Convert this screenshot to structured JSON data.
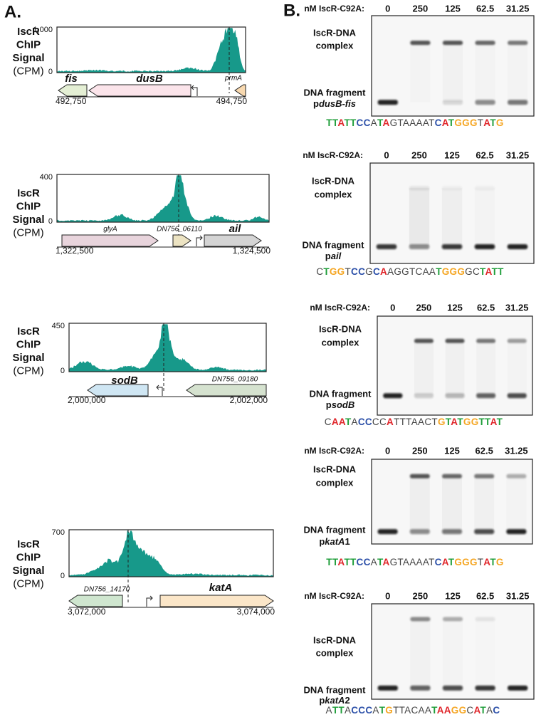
{
  "panel_a": {
    "label": "A.",
    "tracks": [
      {
        "ylabel": [
          "IscR",
          "ChIP",
          "Signal",
          "(CPM)"
        ],
        "ymax": "1,000",
        "ymin": "0",
        "genes": [
          "fis",
          "dusB",
          "prmA"
        ],
        "start": "492,750",
        "end": "494,750"
      },
      {
        "ylabel": [
          "IscR",
          "ChIP",
          "Signal",
          "(CPM)"
        ],
        "ymax": "400",
        "ymin": "0",
        "genes": [
          "glyA",
          "DN756_06110",
          "ail"
        ],
        "start": "1,322,500",
        "end": "1,324,500"
      },
      {
        "ylabel": [
          "IscR",
          "ChIP",
          "Signal",
          "(CPM)"
        ],
        "ymax": "450",
        "ymin": "0",
        "genes": [
          "sodB",
          "DN756_09180"
        ],
        "start": "2,000,000",
        "end": "2,002,000"
      },
      {
        "ylabel": [
          "IscR",
          "ChIP",
          "Signal",
          "(CPM)"
        ],
        "ymax": "700",
        "ymin": "0",
        "genes": [
          "DN756_14170",
          "katA"
        ],
        "start": "3,072,000",
        "end": "3,074,000"
      }
    ]
  },
  "panel_b": {
    "label": "B.",
    "gels": [
      {
        "header": "nM IscR-C92A:",
        "concentrations": [
          0,
          250,
          125,
          62.5,
          31.25
        ],
        "complex_label": [
          "IscR-DNA",
          "complex"
        ],
        "fragment_label": "DNA fragment",
        "fragment": [
          "p",
          "dusB-fis"
        ],
        "sequence": [
          {
            "t": "TT",
            "c": "#1f9e3a"
          },
          {
            "t": "A",
            "c": "#e0252a"
          },
          {
            "t": "TT",
            "c": "#1f9e3a"
          },
          {
            "t": "CC",
            "c": "#2b4fa8"
          },
          {
            "t": "A",
            "c": "#444444"
          },
          {
            "t": "T",
            "c": "#1f9e3a"
          },
          {
            "t": "A",
            "c": "#e0252a"
          },
          {
            "t": "GTAAAAT",
            "c": "#444444"
          },
          {
            "t": "C",
            "c": "#2b4fa8"
          },
          {
            "t": "A",
            "c": "#e0252a"
          },
          {
            "t": "T",
            "c": "#1f9e3a"
          },
          {
            "t": "GGG",
            "c": "#f5a623"
          },
          {
            "t": "T",
            "c": "#444444"
          },
          {
            "t": "A",
            "c": "#e0252a"
          },
          {
            "t": "T",
            "c": "#1f9e3a"
          },
          {
            "t": "G",
            "c": "#f5a623"
          }
        ]
      },
      {
        "header": "nM IscR-C92A:",
        "concentrations": [
          0,
          250,
          125,
          62.5,
          31.25
        ],
        "complex_label": [
          "IscR-DNA",
          "complex"
        ],
        "fragment_label": "DNA fragment",
        "fragment": [
          "p",
          "ail"
        ],
        "sequence": [
          {
            "t": "C",
            "c": "#444444"
          },
          {
            "t": "T",
            "c": "#1f9e3a"
          },
          {
            "t": "GG",
            "c": "#f5a623"
          },
          {
            "t": "T",
            "c": "#444444"
          },
          {
            "t": "CC",
            "c": "#2b4fa8"
          },
          {
            "t": "G",
            "c": "#444444"
          },
          {
            "t": "C",
            "c": "#2b4fa8"
          },
          {
            "t": "A",
            "c": "#e0252a"
          },
          {
            "t": "AGGTCAA",
            "c": "#444444"
          },
          {
            "t": "T",
            "c": "#1f9e3a"
          },
          {
            "t": "GGG",
            "c": "#f5a623"
          },
          {
            "t": "GC",
            "c": "#444444"
          },
          {
            "t": "T",
            "c": "#1f9e3a"
          },
          {
            "t": "A",
            "c": "#e0252a"
          },
          {
            "t": "TT",
            "c": "#1f9e3a"
          }
        ]
      },
      {
        "header": "nM IscR-C92A:",
        "concentrations": [
          0,
          250,
          125,
          62.5,
          31.25
        ],
        "complex_label": [
          "IscR-DNA",
          "complex"
        ],
        "fragment_label": "DNA fragment",
        "fragment": [
          "p",
          "sodB"
        ],
        "sequence": [
          {
            "t": "C",
            "c": "#444444"
          },
          {
            "t": "AA",
            "c": "#e0252a"
          },
          {
            "t": "T",
            "c": "#1f9e3a"
          },
          {
            "t": "A",
            "c": "#444444"
          },
          {
            "t": "CC",
            "c": "#2b4fa8"
          },
          {
            "t": "CC",
            "c": "#444444"
          },
          {
            "t": "A",
            "c": "#e0252a"
          },
          {
            "t": "TTTAACT",
            "c": "#444444"
          },
          {
            "t": "G",
            "c": "#f5a623"
          },
          {
            "t": "T",
            "c": "#1f9e3a"
          },
          {
            "t": "A",
            "c": "#e0252a"
          },
          {
            "t": "T",
            "c": "#1f9e3a"
          },
          {
            "t": "GG",
            "c": "#f5a623"
          },
          {
            "t": "TT",
            "c": "#1f9e3a"
          },
          {
            "t": "A",
            "c": "#e0252a"
          },
          {
            "t": "T",
            "c": "#1f9e3a"
          }
        ]
      },
      {
        "header": "nM IscR-C92A:",
        "concentrations": [
          0,
          250,
          125,
          62.5,
          31.25
        ],
        "complex_label": [
          "IscR-DNA",
          "complex"
        ],
        "fragment_label": "DNA fragment",
        "fragment": [
          "p",
          "katA",
          "1"
        ],
        "sequence": [
          {
            "t": "TT",
            "c": "#1f9e3a"
          },
          {
            "t": "A",
            "c": "#e0252a"
          },
          {
            "t": "TT",
            "c": "#1f9e3a"
          },
          {
            "t": "CC",
            "c": "#2b4fa8"
          },
          {
            "t": "A",
            "c": "#444444"
          },
          {
            "t": "T",
            "c": "#1f9e3a"
          },
          {
            "t": "A",
            "c": "#e0252a"
          },
          {
            "t": "GTAAAAT",
            "c": "#444444"
          },
          {
            "t": "C",
            "c": "#2b4fa8"
          },
          {
            "t": "A",
            "c": "#e0252a"
          },
          {
            "t": "T",
            "c": "#1f9e3a"
          },
          {
            "t": "GGG",
            "c": "#f5a623"
          },
          {
            "t": "T",
            "c": "#444444"
          },
          {
            "t": "A",
            "c": "#e0252a"
          },
          {
            "t": "T",
            "c": "#1f9e3a"
          },
          {
            "t": "G",
            "c": "#f5a623"
          }
        ]
      },
      {
        "header": "nM IscR-C92A:",
        "concentrations": [
          0,
          250,
          125,
          62.5,
          31.25
        ],
        "complex_label": [
          "IscR-DNA",
          "complex"
        ],
        "fragment_label": "DNA fragment",
        "fragment": [
          "p",
          "katA",
          "2"
        ],
        "sequence": [
          {
            "t": "A",
            "c": "#444444"
          },
          {
            "t": "TT",
            "c": "#1f9e3a"
          },
          {
            "t": "A",
            "c": "#444444"
          },
          {
            "t": "CCC",
            "c": "#2b4fa8"
          },
          {
            "t": "A",
            "c": "#444444"
          },
          {
            "t": "T",
            "c": "#1f9e3a"
          },
          {
            "t": "G",
            "c": "#f5a623"
          },
          {
            "t": "TTACAA",
            "c": "#444444"
          },
          {
            "t": "T",
            "c": "#1f9e3a"
          },
          {
            "t": "AA",
            "c": "#e0252a"
          },
          {
            "t": "GG",
            "c": "#f5a623"
          },
          {
            "t": "C",
            "c": "#444444"
          },
          {
            "t": "A",
            "c": "#e0252a"
          },
          {
            "t": "T",
            "c": "#1f9e3a"
          },
          {
            "t": "A",
            "c": "#444444"
          },
          {
            "t": "C",
            "c": "#2b4fa8"
          }
        ]
      }
    ]
  }
}
